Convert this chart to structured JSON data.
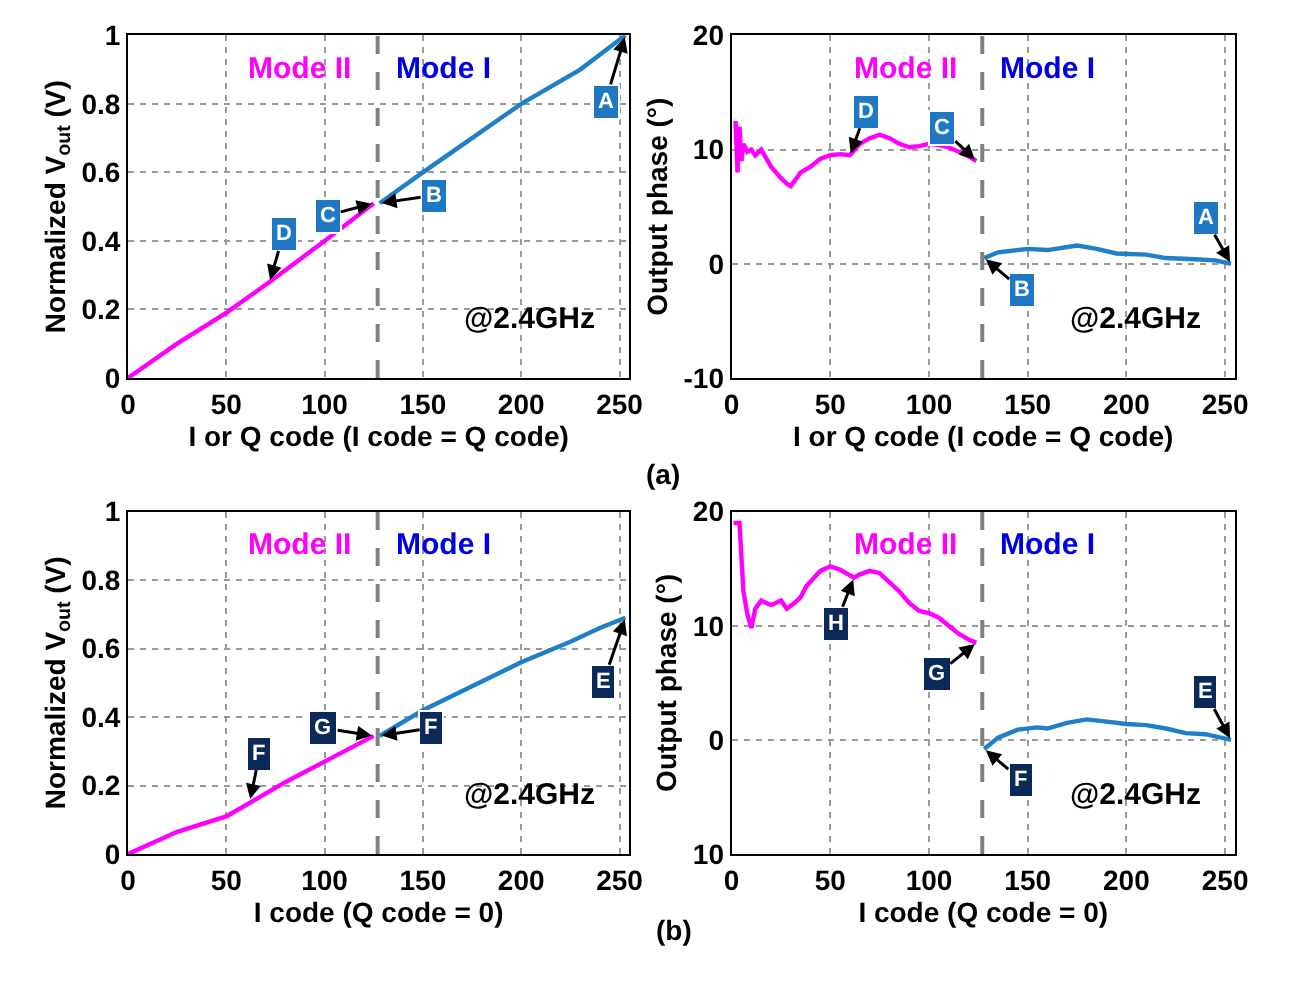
{
  "chart_data": [
    {
      "type": "line",
      "xlabel": "I or Q code (I code = Q code)",
      "ylabel": "Normalized V$_{out}$ (V)",
      "xlim": [
        0,
        255
      ],
      "xticks": [
        0,
        50,
        100,
        150,
        200,
        250
      ],
      "ylim": [
        0,
        1
      ],
      "yticks": [
        0,
        {
          "value": 0.2,
          "label": "0.2"
        },
        {
          "value": 0.4,
          "label": "0.4"
        },
        {
          "value": 0.6,
          "label": "0.6"
        },
        {
          "value": 0.8,
          "label": "0.8"
        },
        1
      ],
      "grid": true,
      "line_style": "solid",
      "marker": "none",
      "series": [
        {
          "color": "#ff00ff",
          "x": [
            0,
            25,
            50,
            72,
            100,
            125
          ],
          "values": [
            0,
            0.1,
            0.19,
            0.28,
            0.4,
            0.51
          ]
        },
        {
          "color": "#1f7fc8",
          "x": [
            128,
            150,
            175,
            200,
            230,
            253
          ],
          "values": [
            0.51,
            0.6,
            0.7,
            0.8,
            0.9,
            1.0
          ]
        }
      ],
      "ref_lines": [
        {
          "axis": "x",
          "value": 127,
          "color": "#808080",
          "line_style": "dashed"
        }
      ],
      "annotations": [
        "Mode II",
        "Mode I",
        "@2.4GHz",
        "(a)",
        {
          "text": "A",
          "x": 253,
          "y": 1.0
        },
        {
          "text": "B",
          "x": 128,
          "y": 0.51
        },
        {
          "text": "C",
          "x": 125,
          "y": 0.51
        },
        {
          "text": "D",
          "x": 72,
          "y": 0.28
        }
      ]
    },
    {
      "type": "line",
      "xlabel": "I or Q code (I code = Q code)",
      "ylabel": "Output phase (°)",
      "xlim": [
        0,
        255
      ],
      "xticks": [
        0,
        50,
        100,
        150,
        200,
        250
      ],
      "ylim": [
        -10,
        20
      ],
      "yticks": [
        -10,
        0,
        10,
        20
      ],
      "grid": true,
      "line_style": "solid",
      "marker": "none",
      "series": [
        {
          "color": "#ff00ff",
          "x": [
            2,
            3,
            4,
            5,
            6,
            8,
            10,
            12,
            15,
            20,
            25,
            28,
            30,
            35,
            40,
            45,
            50,
            55,
            60,
            65,
            70,
            75,
            80,
            85,
            90,
            95,
            100,
            105,
            110,
            115,
            120,
            124
          ],
          "values": [
            12.5,
            8,
            12,
            9,
            10.5,
            9.8,
            10,
            9.5,
            10,
            8.5,
            7.5,
            7,
            6.8,
            8,
            8.5,
            9.2,
            9.5,
            9.6,
            9.5,
            10.5,
            11,
            11.3,
            11,
            10.5,
            10.2,
            10.3,
            10.5,
            10.4,
            10.2,
            9.8,
            9.4,
            9.0
          ]
        },
        {
          "color": "#1f7fc8",
          "x": [
            128,
            135,
            150,
            160,
            175,
            185,
            195,
            210,
            220,
            235,
            245,
            253
          ],
          "values": [
            0.5,
            1,
            1.3,
            1.2,
            1.6,
            1.3,
            0.9,
            0.8,
            0.5,
            0.4,
            0.3,
            0
          ]
        }
      ],
      "ref_lines": [
        {
          "axis": "x",
          "value": 127,
          "color": "#808080",
          "line_style": "dashed"
        }
      ],
      "annotations": [
        "Mode II",
        "Mode I",
        "@2.4GHz",
        {
          "text": "D",
          "x": 60,
          "y": 9.5
        },
        {
          "text": "C",
          "x": 124,
          "y": 9.0
        },
        {
          "text": "B",
          "x": 128,
          "y": 0.5
        },
        {
          "text": "A",
          "x": 253,
          "y": 0
        }
      ]
    },
    {
      "type": "line",
      "xlabel": "I code (Q code = 0)",
      "ylabel": "Normalized V$_{out}$ (V)",
      "xlim": [
        0,
        255
      ],
      "xticks": [
        0,
        50,
        100,
        150,
        200,
        250
      ],
      "ylim": [
        0,
        1
      ],
      "yticks": [
        0,
        {
          "value": 0.2,
          "label": "0.2"
        },
        {
          "value": 0.4,
          "label": "0.4"
        },
        {
          "value": 0.6,
          "label": "0.6"
        },
        {
          "value": 0.8,
          "label": "0.8"
        },
        1
      ],
      "grid": true,
      "line_style": "solid",
      "marker": "none",
      "series": [
        {
          "color": "#ff00ff",
          "x": [
            0,
            25,
            50,
            65,
            80,
            100,
            125
          ],
          "values": [
            0,
            0.065,
            0.11,
            0.16,
            0.21,
            0.27,
            0.345
          ]
        },
        {
          "color": "#1f7fc8",
          "x": [
            128,
            150,
            175,
            200,
            225,
            240,
            253
          ],
          "values": [
            0.345,
            0.42,
            0.49,
            0.56,
            0.62,
            0.66,
            0.69
          ]
        }
      ],
      "ref_lines": [
        {
          "axis": "x",
          "value": 127,
          "color": "#808080",
          "line_style": "dashed"
        }
      ],
      "annotations": [
        "Mode II",
        "Mode I",
        "@2.4GHz",
        "(b)",
        {
          "text": "E",
          "x": 253,
          "y": 0.69
        },
        {
          "text": "F",
          "x": 128,
          "y": 0.345
        },
        {
          "text": "G",
          "x": 125,
          "y": 0.345
        },
        {
          "text": "F",
          "x": 62,
          "y": 0.155
        }
      ]
    },
    {
      "type": "line",
      "xlabel": "I code (Q code = 0)",
      "ylabel": "Output phase (°)",
      "xlim": [
        0,
        255
      ],
      "xticks": [
        0,
        50,
        100,
        150,
        200,
        250
      ],
      "ylim": [
        -10,
        20
      ],
      "yticks": [
        {
          "value": -10,
          "label": "10"
        },
        0,
        10,
        20
      ],
      "grid": true,
      "line_style": "solid",
      "marker": "none",
      "series": [
        {
          "color": "#ff00ff",
          "x": [
            1,
            4,
            6,
            8,
            10,
            12,
            15,
            20,
            25,
            28,
            32,
            35,
            38,
            45,
            50,
            55,
            62,
            65,
            70,
            75,
            80,
            85,
            90,
            95,
            100,
            105,
            110,
            115,
            120,
            124
          ],
          "values": [
            19,
            19,
            13,
            11,
            9.8,
            11.5,
            12.2,
            11.8,
            12.2,
            11.5,
            12,
            12.5,
            13.5,
            14.8,
            15.2,
            14.9,
            14.2,
            14.5,
            14.8,
            14.6,
            13.8,
            13,
            12,
            11.3,
            11.1,
            10.7,
            10,
            9.3,
            8.8,
            8.5
          ]
        },
        {
          "color": "#1f7fc8",
          "x": [
            128,
            135,
            145,
            155,
            160,
            170,
            180,
            190,
            200,
            210,
            220,
            230,
            240,
            253
          ],
          "values": [
            -0.8,
            0.2,
            0.9,
            1.1,
            1.0,
            1.5,
            1.8,
            1.6,
            1.4,
            1.3,
            1.0,
            0.6,
            0.5,
            0
          ]
        }
      ],
      "ref_lines": [
        {
          "axis": "x",
          "value": 127,
          "color": "#808080",
          "line_style": "dashed"
        }
      ],
      "annotations": [
        "Mode II",
        "Mode I",
        "@2.4GHz",
        {
          "text": "H",
          "x": 62,
          "y": 14.2
        },
        {
          "text": "G",
          "x": 124,
          "y": 8.5
        },
        {
          "text": "F",
          "x": 128,
          "y": -0.8
        },
        {
          "text": "E",
          "x": 253,
          "y": 0
        }
      ]
    }
  ]
}
